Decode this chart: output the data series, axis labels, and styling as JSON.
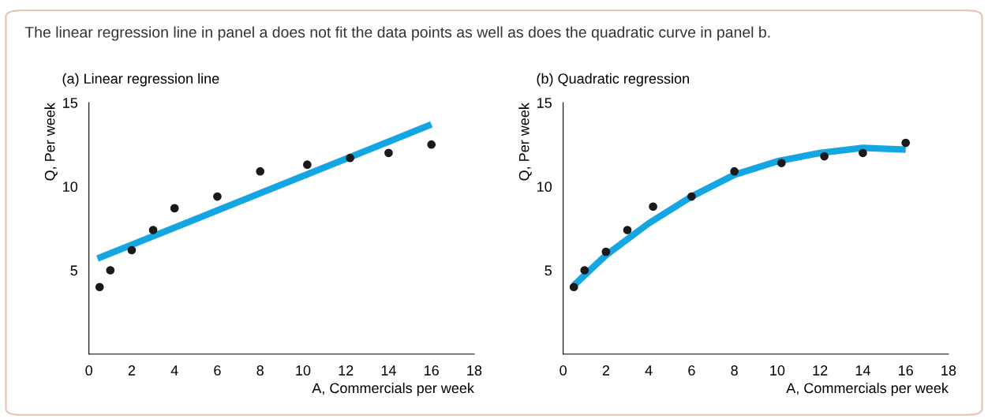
{
  "chart_data": [
    {
      "type": "scatter",
      "title": "(a) Linear regression line",
      "annotations": [
        "The linear regression line in panel a does not fit the data points as well as does the quadratic curve in panel b."
      ],
      "xlabel": "A, Commercials per week",
      "ylabel": "Q, Per week",
      "xlim": [
        0,
        18
      ],
      "ylim": [
        0,
        15
      ],
      "xticks": [
        0,
        2,
        4,
        6,
        8,
        10,
        12,
        14,
        16,
        18
      ],
      "yticks": [
        5,
        10,
        15
      ],
      "grid": false,
      "legend": false,
      "series": [
        {
          "color": "#1a1a1a",
          "marker": "circle",
          "x": [
            0.5,
            1,
            2,
            3,
            4,
            6,
            8,
            10.2,
            12.2,
            14,
            16
          ],
          "values": [
            4.0,
            5.0,
            6.2,
            7.4,
            8.7,
            9.4,
            10.9,
            11.3,
            11.7,
            12.0,
            12.5
          ]
        },
        {
          "type": "line",
          "color": "#13a6e3",
          "line_style": "solid",
          "x": [
            0.4,
            16
          ],
          "values": [
            5.7,
            13.7
          ]
        }
      ]
    },
    {
      "type": "scatter",
      "title": "(b) Quadratic regression",
      "xlabel": "A, Commercials per week",
      "ylabel": "Q, Per week",
      "xlim": [
        0,
        18
      ],
      "ylim": [
        0,
        15
      ],
      "xticks": [
        0,
        2,
        4,
        6,
        8,
        10,
        12,
        14,
        16,
        18
      ],
      "yticks": [
        5,
        10,
        15
      ],
      "grid": false,
      "legend": false,
      "series": [
        {
          "color": "#1a1a1a",
          "marker": "circle",
          "x": [
            0.5,
            1,
            2,
            3,
            4.2,
            6,
            8,
            10.2,
            12.2,
            14,
            16
          ],
          "values": [
            4.0,
            5.0,
            6.1,
            7.4,
            8.8,
            9.4,
            10.9,
            11.4,
            11.8,
            12.0,
            12.6
          ]
        },
        {
          "type": "line",
          "color": "#13a6e3",
          "line_style": "solid",
          "x": [
            0.5,
            2,
            4,
            6,
            8,
            10,
            12,
            14,
            16
          ],
          "values": [
            4.1,
            5.9,
            7.8,
            9.4,
            10.7,
            11.5,
            12.0,
            12.3,
            12.2
          ]
        }
      ]
    }
  ]
}
